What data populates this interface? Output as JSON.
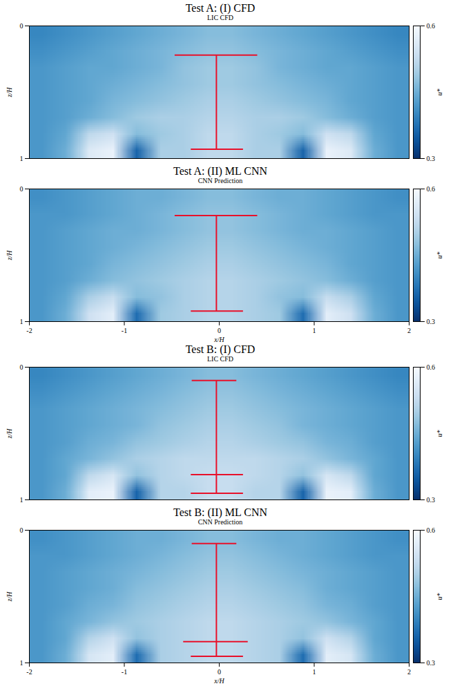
{
  "chart_data": [
    {
      "type": "heatmap",
      "title": "Test A: (I) CFD",
      "subtitle": "LIC CFD",
      "ylabel": "z/H",
      "xlim": [
        -2,
        2
      ],
      "ylim": [
        1,
        0
      ],
      "yticks": [
        0,
        1
      ],
      "tick_labels": "y",
      "color": "blues",
      "colorbar": {
        "label": "u*",
        "range": [
          0.3,
          0.6
        ],
        "ticks": [
          0.3,
          0.6
        ]
      },
      "cells": [
        [
          0.4,
          0.41,
          0.42,
          0.43,
          0.44,
          0.45,
          0.46,
          0.47,
          0.47,
          0.46,
          0.45,
          0.44,
          0.43,
          0.42,
          0.41,
          0.4
        ],
        [
          0.41,
          0.42,
          0.43,
          0.44,
          0.45,
          0.46,
          0.47,
          0.48,
          0.48,
          0.47,
          0.46,
          0.45,
          0.44,
          0.43,
          0.42,
          0.41
        ],
        [
          0.42,
          0.43,
          0.44,
          0.44,
          0.45,
          0.46,
          0.48,
          0.49,
          0.49,
          0.48,
          0.46,
          0.45,
          0.44,
          0.44,
          0.43,
          0.42
        ],
        [
          0.42,
          0.43,
          0.44,
          0.45,
          0.46,
          0.47,
          0.48,
          0.49,
          0.49,
          0.48,
          0.47,
          0.46,
          0.45,
          0.44,
          0.43,
          0.42
        ],
        [
          0.42,
          0.43,
          0.44,
          0.46,
          0.47,
          0.48,
          0.49,
          0.5,
          0.5,
          0.49,
          0.48,
          0.47,
          0.46,
          0.44,
          0.43,
          0.42
        ],
        [
          0.42,
          0.43,
          0.45,
          0.47,
          0.49,
          0.5,
          0.5,
          0.51,
          0.51,
          0.5,
          0.5,
          0.49,
          0.47,
          0.45,
          0.43,
          0.42
        ],
        [
          0.42,
          0.44,
          0.52,
          0.54,
          0.47,
          0.49,
          0.5,
          0.52,
          0.52,
          0.5,
          0.49,
          0.47,
          0.54,
          0.52,
          0.44,
          0.42
        ],
        [
          0.42,
          0.45,
          0.56,
          0.58,
          0.36,
          0.5,
          0.5,
          0.52,
          0.52,
          0.5,
          0.5,
          0.36,
          0.58,
          0.56,
          0.45,
          0.42
        ]
      ],
      "annotations": [
        {
          "x": [
            -0.03,
            -0.03
          ],
          "y": [
            0.22,
            0.93
          ]
        },
        {
          "x": [
            -0.47,
            0.4
          ],
          "y": [
            0.22,
            0.22
          ]
        },
        {
          "x": [
            -0.3,
            0.25
          ],
          "y": [
            0.93,
            0.93
          ]
        }
      ]
    },
    {
      "type": "heatmap",
      "title": "Test A: (II) ML CNN",
      "subtitle": "CNN Prediction",
      "xlabel": "x/H",
      "ylabel": "z/H",
      "xlim": [
        -2,
        2
      ],
      "xticks": [
        -2,
        -1,
        0,
        1,
        2
      ],
      "ylim": [
        1,
        0
      ],
      "yticks": [
        0,
        1
      ],
      "color": "blues",
      "colorbar": {
        "label": "u*",
        "range": [
          0.3,
          0.6
        ],
        "ticks": [
          0.3,
          0.6
        ]
      },
      "cells": [
        [
          0.41,
          0.42,
          0.43,
          0.44,
          0.45,
          0.45,
          0.46,
          0.47,
          0.47,
          0.46,
          0.45,
          0.45,
          0.44,
          0.43,
          0.42,
          0.41
        ],
        [
          0.42,
          0.42,
          0.43,
          0.44,
          0.45,
          0.46,
          0.47,
          0.48,
          0.48,
          0.47,
          0.46,
          0.45,
          0.44,
          0.43,
          0.42,
          0.42
        ],
        [
          0.42,
          0.43,
          0.44,
          0.45,
          0.45,
          0.46,
          0.47,
          0.48,
          0.48,
          0.47,
          0.46,
          0.45,
          0.45,
          0.44,
          0.43,
          0.42
        ],
        [
          0.42,
          0.43,
          0.44,
          0.45,
          0.46,
          0.47,
          0.48,
          0.49,
          0.49,
          0.48,
          0.47,
          0.46,
          0.45,
          0.44,
          0.43,
          0.42
        ],
        [
          0.42,
          0.43,
          0.44,
          0.46,
          0.47,
          0.48,
          0.49,
          0.5,
          0.5,
          0.49,
          0.48,
          0.47,
          0.46,
          0.44,
          0.43,
          0.42
        ],
        [
          0.42,
          0.43,
          0.45,
          0.47,
          0.48,
          0.49,
          0.5,
          0.51,
          0.51,
          0.5,
          0.49,
          0.48,
          0.47,
          0.45,
          0.43,
          0.42
        ],
        [
          0.42,
          0.44,
          0.5,
          0.53,
          0.47,
          0.48,
          0.5,
          0.51,
          0.51,
          0.5,
          0.48,
          0.47,
          0.53,
          0.5,
          0.44,
          0.42
        ],
        [
          0.42,
          0.45,
          0.54,
          0.57,
          0.37,
          0.49,
          0.5,
          0.51,
          0.51,
          0.5,
          0.49,
          0.37,
          0.57,
          0.54,
          0.45,
          0.42
        ]
      ],
      "annotations": [
        {
          "x": [
            -0.03,
            -0.03
          ],
          "y": [
            0.2,
            0.92
          ]
        },
        {
          "x": [
            -0.47,
            0.4
          ],
          "y": [
            0.2,
            0.2
          ]
        },
        {
          "x": [
            -0.3,
            0.25
          ],
          "y": [
            0.92,
            0.92
          ]
        }
      ]
    },
    {
      "type": "heatmap",
      "title": "Test B: (I) CFD",
      "subtitle": "LIC CFD",
      "ylabel": "z/H",
      "xlim": [
        -2,
        2
      ],
      "ylim": [
        1,
        0
      ],
      "yticks": [
        0,
        1
      ],
      "tick_labels": "y",
      "color": "blues",
      "colorbar": {
        "label": "u*",
        "range": [
          0.3,
          0.6
        ],
        "ticks": [
          0.3,
          0.6
        ]
      },
      "cells": [
        [
          0.4,
          0.41,
          0.42,
          0.43,
          0.44,
          0.45,
          0.46,
          0.47,
          0.47,
          0.46,
          0.45,
          0.44,
          0.43,
          0.42,
          0.41,
          0.4
        ],
        [
          0.41,
          0.42,
          0.43,
          0.44,
          0.45,
          0.46,
          0.47,
          0.48,
          0.48,
          0.47,
          0.46,
          0.45,
          0.44,
          0.43,
          0.42,
          0.41
        ],
        [
          0.42,
          0.43,
          0.44,
          0.45,
          0.46,
          0.47,
          0.48,
          0.49,
          0.49,
          0.48,
          0.47,
          0.46,
          0.45,
          0.44,
          0.43,
          0.42
        ],
        [
          0.42,
          0.43,
          0.44,
          0.45,
          0.46,
          0.48,
          0.49,
          0.5,
          0.5,
          0.49,
          0.48,
          0.46,
          0.45,
          0.44,
          0.43,
          0.42
        ],
        [
          0.42,
          0.43,
          0.45,
          0.46,
          0.48,
          0.49,
          0.5,
          0.51,
          0.51,
          0.5,
          0.49,
          0.48,
          0.46,
          0.45,
          0.43,
          0.42
        ],
        [
          0.42,
          0.44,
          0.46,
          0.48,
          0.5,
          0.51,
          0.52,
          0.52,
          0.52,
          0.52,
          0.51,
          0.5,
          0.48,
          0.46,
          0.44,
          0.42
        ],
        [
          0.42,
          0.44,
          0.52,
          0.55,
          0.48,
          0.51,
          0.52,
          0.53,
          0.53,
          0.52,
          0.51,
          0.48,
          0.55,
          0.52,
          0.44,
          0.42
        ],
        [
          0.42,
          0.45,
          0.57,
          0.58,
          0.36,
          0.51,
          0.51,
          0.53,
          0.53,
          0.51,
          0.51,
          0.36,
          0.58,
          0.57,
          0.45,
          0.42
        ]
      ],
      "annotations": [
        {
          "x": [
            -0.03,
            -0.03
          ],
          "y": [
            0.1,
            0.95
          ]
        },
        {
          "x": [
            -0.29,
            0.18
          ],
          "y": [
            0.1,
            0.1
          ]
        },
        {
          "x": [
            -0.3,
            0.25
          ],
          "y": [
            0.81,
            0.81
          ]
        },
        {
          "x": [
            -0.3,
            0.25
          ],
          "y": [
            0.95,
            0.95
          ]
        }
      ]
    },
    {
      "type": "heatmap",
      "title": "Test B: (II) ML CNN",
      "subtitle": "CNN Prediction",
      "xlabel": "x/H",
      "ylabel": "z/H",
      "xlim": [
        -2,
        2
      ],
      "xticks": [
        -2,
        -1,
        0,
        1,
        2
      ],
      "ylim": [
        1,
        0
      ],
      "yticks": [
        0,
        1
      ],
      "color": "blues",
      "colorbar": {
        "label": "u*",
        "range": [
          0.3,
          0.6
        ],
        "ticks": [
          0.3,
          0.6
        ]
      },
      "cells": [
        [
          0.41,
          0.42,
          0.43,
          0.44,
          0.45,
          0.45,
          0.46,
          0.47,
          0.47,
          0.46,
          0.45,
          0.45,
          0.44,
          0.43,
          0.42,
          0.41
        ],
        [
          0.42,
          0.42,
          0.43,
          0.44,
          0.45,
          0.46,
          0.47,
          0.48,
          0.48,
          0.47,
          0.46,
          0.45,
          0.44,
          0.43,
          0.42,
          0.42
        ],
        [
          0.42,
          0.43,
          0.44,
          0.45,
          0.46,
          0.47,
          0.48,
          0.49,
          0.49,
          0.48,
          0.47,
          0.46,
          0.45,
          0.44,
          0.43,
          0.42
        ],
        [
          0.42,
          0.43,
          0.44,
          0.45,
          0.47,
          0.48,
          0.49,
          0.5,
          0.5,
          0.49,
          0.48,
          0.47,
          0.45,
          0.44,
          0.43,
          0.42
        ],
        [
          0.42,
          0.43,
          0.45,
          0.46,
          0.48,
          0.49,
          0.5,
          0.51,
          0.51,
          0.5,
          0.49,
          0.48,
          0.46,
          0.45,
          0.43,
          0.42
        ],
        [
          0.42,
          0.44,
          0.46,
          0.48,
          0.49,
          0.5,
          0.51,
          0.52,
          0.52,
          0.51,
          0.5,
          0.49,
          0.48,
          0.46,
          0.44,
          0.42
        ],
        [
          0.42,
          0.44,
          0.51,
          0.54,
          0.48,
          0.5,
          0.51,
          0.52,
          0.52,
          0.51,
          0.5,
          0.48,
          0.54,
          0.51,
          0.44,
          0.42
        ],
        [
          0.42,
          0.45,
          0.55,
          0.57,
          0.37,
          0.5,
          0.51,
          0.52,
          0.52,
          0.51,
          0.5,
          0.37,
          0.57,
          0.55,
          0.45,
          0.42
        ]
      ],
      "annotations": [
        {
          "x": [
            -0.03,
            -0.03
          ],
          "y": [
            0.1,
            0.95
          ]
        },
        {
          "x": [
            -0.29,
            0.18
          ],
          "y": [
            0.1,
            0.1
          ]
        },
        {
          "x": [
            -0.38,
            0.3
          ],
          "y": [
            0.84,
            0.84
          ]
        },
        {
          "x": [
            -0.3,
            0.25
          ],
          "y": [
            0.95,
            0.95
          ]
        }
      ]
    }
  ]
}
